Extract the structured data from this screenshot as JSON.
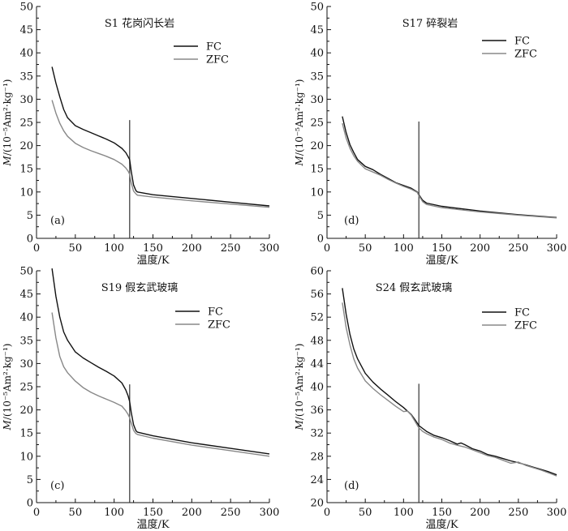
{
  "chart_data": [
    {
      "type": "line",
      "title": "S1 花岗闪长岩",
      "panel_label": "(a)",
      "xlabel": "温度/K",
      "ylabel_m": "M",
      "ylabel_rest": "/(10⁻⁵Am²·kg⁻¹)",
      "xlim": [
        0,
        300
      ],
      "ylim": [
        0,
        50
      ],
      "xticks": [
        0,
        50,
        100,
        150,
        200,
        250,
        300
      ],
      "yticks": [
        0,
        5,
        10,
        15,
        20,
        25,
        30,
        35,
        40,
        45,
        50
      ],
      "vline": {
        "x": 120,
        "y_top": 25.5
      },
      "series": [
        {
          "name": "FC",
          "color": "#111111",
          "x": [
            20,
            25,
            30,
            35,
            40,
            50,
            60,
            70,
            80,
            90,
            100,
            110,
            115,
            118,
            120,
            122,
            125,
            128,
            130,
            150,
            200,
            250,
            300
          ],
          "y": [
            37.0,
            33.5,
            30.5,
            27.8,
            26.0,
            24.3,
            23.5,
            22.8,
            22.1,
            21.4,
            20.6,
            19.4,
            18.5,
            17.6,
            17.0,
            14.5,
            11.5,
            10.3,
            10.0,
            9.4,
            8.6,
            7.8,
            7.0
          ]
        },
        {
          "name": "ZFC",
          "color": "#888888",
          "x": [
            20,
            25,
            30,
            35,
            40,
            50,
            60,
            70,
            80,
            90,
            100,
            110,
            115,
            118,
            120,
            122,
            125,
            128,
            130,
            150,
            200,
            250,
            300
          ],
          "y": [
            29.8,
            27.0,
            24.8,
            23.2,
            22.0,
            20.5,
            19.6,
            18.9,
            18.3,
            17.7,
            17.0,
            16.0,
            15.2,
            14.5,
            13.8,
            12.0,
            10.2,
            9.6,
            9.3,
            8.9,
            8.1,
            7.4,
            6.7
          ]
        }
      ]
    },
    {
      "type": "line",
      "title": "S17 碎裂岩",
      "panel_label": "(d)",
      "xlabel": "温度/K",
      "ylabel_m": "M",
      "ylabel_rest": "/(10⁻⁵Am²·kg⁻¹)",
      "xlim": [
        0,
        300
      ],
      "ylim": [
        0,
        50
      ],
      "xticks": [
        0,
        50,
        100,
        150,
        200,
        250,
        300
      ],
      "yticks": [
        0,
        5,
        10,
        15,
        20,
        25,
        30,
        35,
        40,
        45,
        50
      ],
      "vline": {
        "x": 120,
        "y_top": 25.2
      },
      "series": [
        {
          "name": "FC",
          "color": "#111111",
          "x": [
            20,
            25,
            30,
            35,
            40,
            50,
            60,
            70,
            80,
            90,
            100,
            110,
            118,
            120,
            125,
            130,
            150,
            200,
            250,
            300
          ],
          "y": [
            26.3,
            22.8,
            20.2,
            18.5,
            17.0,
            15.5,
            14.8,
            13.8,
            12.9,
            12.0,
            11.4,
            10.8,
            10.0,
            9.4,
            8.2,
            7.6,
            6.9,
            5.9,
            5.1,
            4.5
          ]
        },
        {
          "name": "ZFC",
          "color": "#888888",
          "x": [
            20,
            25,
            30,
            35,
            40,
            50,
            60,
            70,
            80,
            90,
            100,
            110,
            118,
            120,
            125,
            130,
            150,
            200,
            250,
            300
          ],
          "y": [
            24.8,
            21.6,
            19.4,
            17.8,
            16.6,
            15.0,
            14.3,
            13.6,
            12.7,
            11.9,
            11.2,
            10.6,
            9.9,
            9.2,
            7.9,
            7.3,
            6.6,
            5.7,
            5.0,
            4.4
          ]
        }
      ]
    },
    {
      "type": "line",
      "title": "S19 假玄武玻璃",
      "panel_label": "(c)",
      "xlabel": "温度/K",
      "ylabel_m": "M",
      "ylabel_rest": "/(10⁻⁵Am²·kg⁻¹)",
      "xlim": [
        0,
        300
      ],
      "ylim": [
        0,
        50
      ],
      "xticks": [
        0,
        50,
        100,
        150,
        200,
        250,
        300
      ],
      "yticks": [
        0,
        5,
        10,
        15,
        20,
        25,
        30,
        35,
        40,
        45,
        50
      ],
      "vline": {
        "x": 120,
        "y_top": 25.5
      },
      "series": [
        {
          "name": "FC",
          "color": "#111111",
          "x": [
            20,
            25,
            30,
            35,
            40,
            50,
            60,
            70,
            80,
            90,
            100,
            110,
            115,
            118,
            120,
            122,
            125,
            128,
            130,
            150,
            200,
            250,
            300
          ],
          "y": [
            50.5,
            44.5,
            40.0,
            36.8,
            35.0,
            32.5,
            31.2,
            30.2,
            29.2,
            28.3,
            27.3,
            25.8,
            24.3,
            23.0,
            21.8,
            19.5,
            16.8,
            15.5,
            15.2,
            14.4,
            12.9,
            11.7,
            10.5
          ]
        },
        {
          "name": "ZFC",
          "color": "#888888",
          "x": [
            20,
            25,
            30,
            35,
            40,
            50,
            60,
            70,
            80,
            90,
            100,
            110,
            115,
            118,
            120,
            122,
            125,
            128,
            130,
            150,
            200,
            250,
            300
          ],
          "y": [
            41.0,
            35.5,
            31.5,
            29.3,
            28.0,
            26.2,
            24.8,
            23.8,
            23.0,
            22.3,
            21.6,
            20.8,
            19.8,
            19.0,
            18.3,
            17.2,
            15.6,
            14.9,
            14.7,
            13.9,
            12.4,
            11.2,
            10.0
          ]
        }
      ]
    },
    {
      "type": "line",
      "title": "S24  假玄武玻璃",
      "panel_label": "(d)",
      "xlabel": "温度/K",
      "ylabel_m": "M",
      "ylabel_rest": "/(10⁻⁵Am²·kg⁻¹)",
      "xlim": [
        0,
        300
      ],
      "ylim": [
        20,
        60
      ],
      "xticks": [
        0,
        50,
        100,
        150,
        200,
        250,
        300
      ],
      "yticks": [
        20,
        24,
        28,
        32,
        36,
        40,
        44,
        48,
        52,
        56,
        60
      ],
      "vline": {
        "x": 120,
        "y_top": 40.5
      },
      "series": [
        {
          "name": "FC",
          "color": "#111111",
          "x": [
            20,
            25,
            30,
            35,
            40,
            50,
            60,
            70,
            80,
            90,
            100,
            110,
            115,
            120,
            125,
            130,
            140,
            150,
            160,
            170,
            175,
            180,
            190,
            200,
            210,
            220,
            230,
            240,
            250,
            260,
            270,
            280,
            290,
            300
          ],
          "y": [
            57.0,
            52.5,
            49.0,
            46.5,
            44.8,
            42.3,
            40.8,
            39.6,
            38.5,
            37.4,
            36.4,
            35.2,
            34.3,
            33.3,
            32.8,
            32.3,
            31.6,
            31.2,
            30.7,
            30.1,
            30.3,
            30.0,
            29.3,
            28.9,
            28.3,
            28.0,
            27.6,
            27.2,
            26.9,
            26.5,
            26.1,
            25.7,
            25.3,
            24.8
          ]
        },
        {
          "name": "ZFC",
          "color": "#888888",
          "x": [
            20,
            25,
            30,
            35,
            40,
            50,
            60,
            70,
            80,
            90,
            100,
            105,
            110,
            115,
            120,
            125,
            130,
            140,
            150,
            160,
            170,
            180,
            190,
            200,
            210,
            220,
            230,
            240,
            250,
            260,
            270,
            280,
            290,
            300
          ],
          "y": [
            54.5,
            50.2,
            47.2,
            44.8,
            43.2,
            41.0,
            39.7,
            38.6,
            37.6,
            36.6,
            35.7,
            35.8,
            35.1,
            34.0,
            32.9,
            32.3,
            31.9,
            31.3,
            30.9,
            30.3,
            29.9,
            29.6,
            29.1,
            28.6,
            28.1,
            27.8,
            27.3,
            26.8,
            27.0,
            26.4,
            26.0,
            25.6,
            25.1,
            24.6
          ]
        }
      ]
    }
  ]
}
